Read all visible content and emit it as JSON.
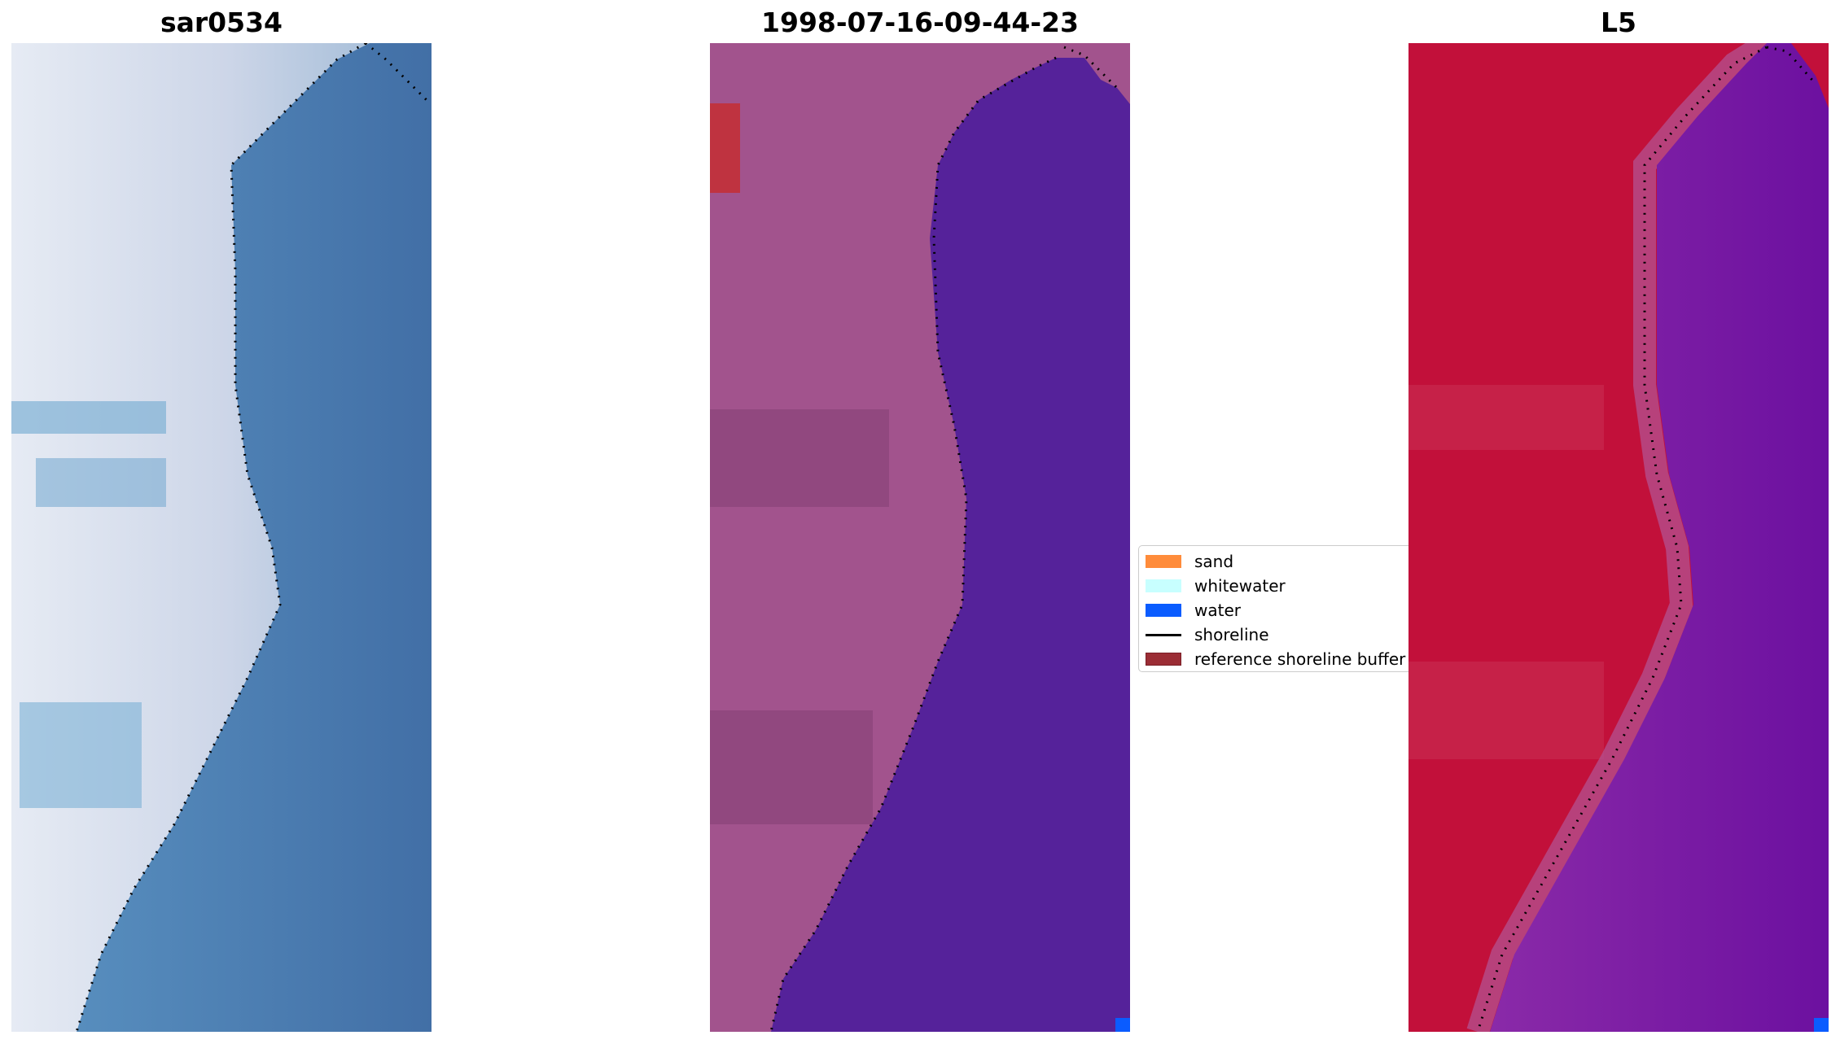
{
  "panels": [
    {
      "title": "sar0534",
      "view": "rgb-image"
    },
    {
      "title": "1998-07-16-09-44-23",
      "view": "classified-image"
    },
    {
      "title": "L5",
      "view": "false-color-image"
    }
  ],
  "legend": {
    "entries": [
      {
        "label": "sand",
        "kind": "patch",
        "color": "#ff8c3b"
      },
      {
        "label": "whitewater",
        "kind": "patch",
        "color": "#c8ffff"
      },
      {
        "label": "water",
        "kind": "patch",
        "color": "#0a5cff"
      },
      {
        "label": "shoreline",
        "kind": "line",
        "color": "#000000"
      },
      {
        "label": "reference shoreline buffer",
        "kind": "patch",
        "color": "#9b2d35"
      }
    ]
  },
  "colors": {
    "rgb_land": "#c9d3e6",
    "rgb_water": "#4a7fb2",
    "class_land": "#a2538d",
    "class_water": "#55229a",
    "class_buffer": "#bf3340",
    "class_water_pixel": "#0a5cff",
    "false_land": "#c2103a",
    "false_water": "#7a1ba3",
    "shoreline": "#000000"
  }
}
